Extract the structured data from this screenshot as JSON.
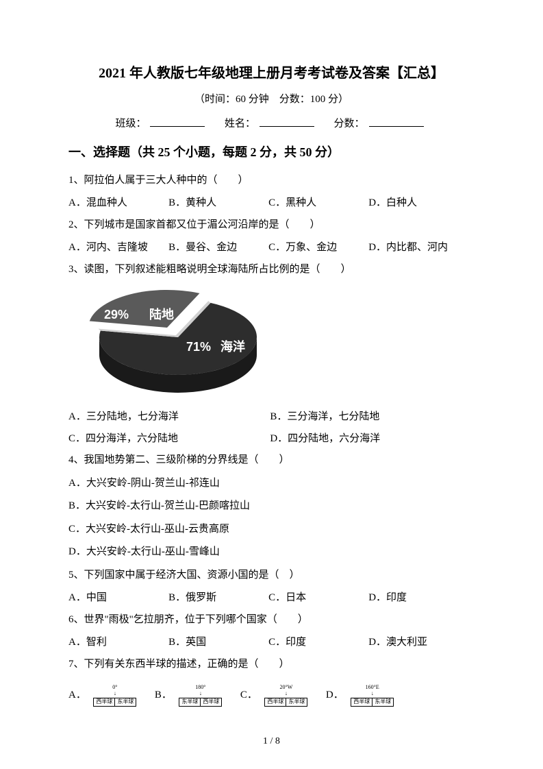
{
  "title": "2021 年人教版七年级地理上册月考考试卷及答案【汇总】",
  "subtitle_parts": {
    "time_label": "（时间：60 分钟",
    "score_label": "分数：100 分）"
  },
  "info": {
    "class_label": "班级：",
    "name_label": "姓名：",
    "score_label": "分数："
  },
  "section_heading": "一、选择题（共 25 个小题，每题 2 分，共 50 分）",
  "q1": {
    "stem": "1、阿拉伯人属于三大人种中的（　　）",
    "opts": {
      "A": "A．混血种人",
      "B": "B．黄种人",
      "C": "C．黑种人",
      "D": "D．白种人"
    }
  },
  "q2": {
    "stem": "2、下列城市是国家首都又位于湄公河沿岸的是（　　）",
    "opts": {
      "A": "A．河内、吉隆坡",
      "B": "B．曼谷、金边",
      "C": "C．万象、金边",
      "D": "D．内比都、河内"
    }
  },
  "q3": {
    "stem": "3、读图，下列叙述能粗略说明全球海陆所占比例的是（　　）",
    "chart": {
      "type": "pie",
      "slices": [
        {
          "label": "陆地",
          "value": 29,
          "pct_label": "29%",
          "fill": "#5a5a5a"
        },
        {
          "label": "海洋",
          "value": 71,
          "pct_label": "71%",
          "fill": "#2d2d2d"
        }
      ],
      "separator_color": "#d0d0d0",
      "side_color": "#1a1a1a",
      "label_color": "#ffffff",
      "label_fontsize": 18,
      "background_color": "#ffffff"
    },
    "opts": {
      "A": "A．三分陆地，七分海洋",
      "B": "B．三分海洋，七分陆地",
      "C": "C．四分海洋，六分陆地",
      "D": "D．四分陆地，六分海洋"
    }
  },
  "q4": {
    "stem": "4、我国地势第二、三级阶梯的分界线是（　　）",
    "opts": {
      "A": "A．大兴安岭-阴山-贺兰山-祁连山",
      "B": "B．大兴安岭-太行山-贺兰山-巴颜喀拉山",
      "C": "C．大兴安岭-太行山-巫山-云贵高原",
      "D": "D．大兴安岭-太行山-巫山-雪峰山"
    }
  },
  "q5": {
    "stem": "5、下列国家中属于经济大国、资源小国的是（　）",
    "opts": {
      "A": "A．中国",
      "B": "B．俄罗斯",
      "C": "C．日本",
      "D": "D．印度"
    }
  },
  "q6": {
    "stem": "6、世界\"雨极\"乞拉朋齐，位于下列哪个国家（　　）",
    "opts": {
      "A": "A．智利",
      "B": "B．英国",
      "C": "C．印度",
      "D": "D．澳大利亚"
    }
  },
  "q7": {
    "stem": "7、下列有关东西半球的描述，正确的是（　　）",
    "diagrams": {
      "A": {
        "top": "0°",
        "left": "西半球",
        "right": "东半球"
      },
      "B": {
        "top": "180°",
        "left": "东半球",
        "right": "西半球"
      },
      "C": {
        "top": "20°W",
        "left": "西半球",
        "right": "东半球"
      },
      "D": {
        "top": "160°E",
        "left": "西半球",
        "right": "东半球"
      }
    },
    "opt_labels": {
      "A": "A．",
      "B": "B．",
      "C": "C．",
      "D": "D．"
    }
  },
  "page_footer": "1 / 8"
}
